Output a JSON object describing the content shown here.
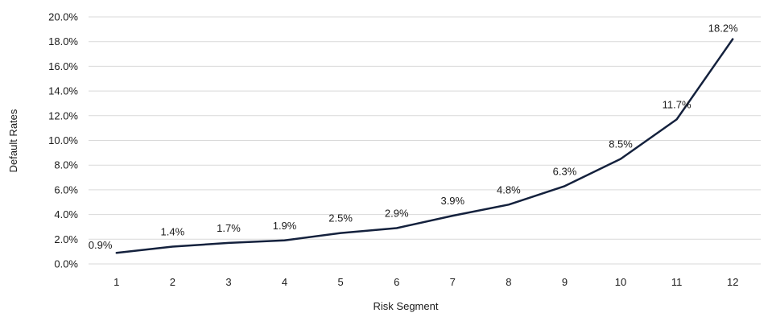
{
  "chart_data": {
    "type": "line",
    "title": "",
    "xlabel": "Risk Segment",
    "ylabel": "Default Rates",
    "categories": [
      "1",
      "2",
      "3",
      "4",
      "5",
      "6",
      "7",
      "8",
      "9",
      "10",
      "11",
      "12"
    ],
    "series": [
      {
        "values": [
          0.9,
          1.4,
          1.7,
          1.9,
          2.5,
          2.9,
          3.9,
          4.8,
          6.3,
          8.5,
          11.7,
          18.2
        ],
        "data_labels": [
          "0.9%",
          "1.4%",
          "1.7%",
          "1.9%",
          "2.5%",
          "2.9%",
          "3.9%",
          "4.8%",
          "6.3%",
          "8.5%",
          "11.7%",
          "18.2%"
        ],
        "color": "#14213d"
      }
    ],
    "ylim": [
      0,
      20
    ],
    "y_ticks": [
      0,
      2,
      4,
      6,
      8,
      10,
      12,
      14,
      16,
      18,
      20
    ],
    "y_tick_labels": [
      "0.0%",
      "2.0%",
      "4.0%",
      "6.0%",
      "8.0%",
      "10.0%",
      "12.0%",
      "14.0%",
      "16.0%",
      "18.0%",
      "20.0%"
    ],
    "grid": true,
    "legend": "none"
  }
}
